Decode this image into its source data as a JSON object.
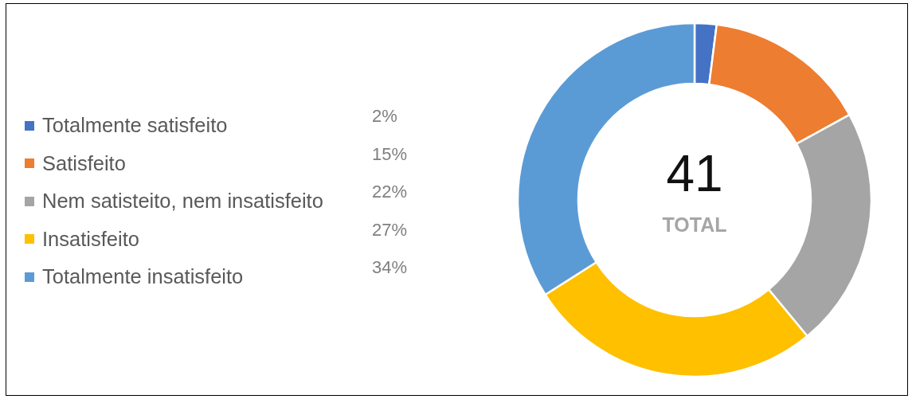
{
  "chart_data": {
    "type": "donut",
    "categories": [
      "Totalmente satisfeito",
      "Satisfeito",
      "Nem satisteito, nem insatisfeito",
      "Insatisfeito",
      "Totalmente insatisfeito"
    ],
    "values": [
      2,
      15,
      22,
      27,
      34
    ],
    "value_labels": [
      "2%",
      "15%",
      "22%",
      "27%",
      "34%"
    ],
    "colors": [
      "#4472c4",
      "#ed7d31",
      "#a5a5a5",
      "#ffc000",
      "#5b9bd5"
    ],
    "annotations": [
      "41",
      "TOTAL"
    ],
    "legend": "left"
  }
}
